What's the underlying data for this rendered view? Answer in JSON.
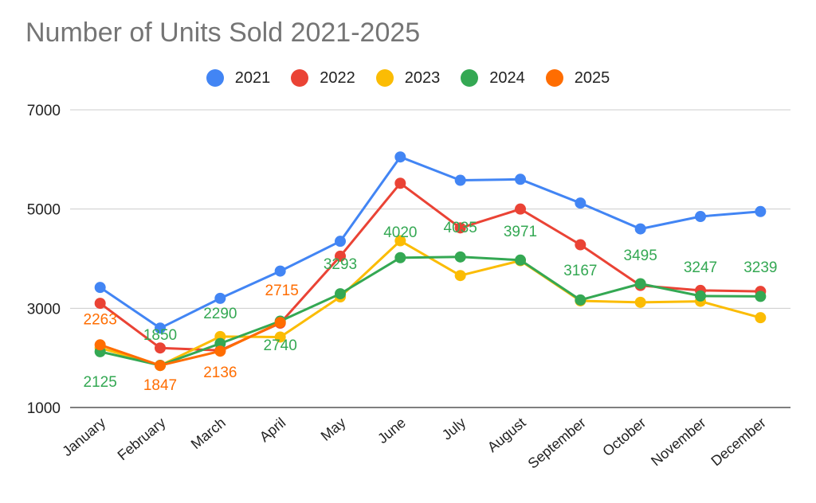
{
  "chart_data": {
    "type": "line",
    "title": "Number of Units Sold 2021-2025",
    "xlabel": "",
    "ylabel": "",
    "categories": [
      "January",
      "February",
      "March",
      "April",
      "May",
      "June",
      "July",
      "August",
      "September",
      "October",
      "November",
      "December"
    ],
    "ylim": [
      1000,
      7000
    ],
    "yticks": [
      1000,
      3000,
      5000,
      7000
    ],
    "grid": true,
    "legend_position": "top",
    "series": [
      {
        "name": "2021",
        "color": "#4285F4",
        "values": [
          3420,
          2600,
          3200,
          3750,
          4350,
          6050,
          5580,
          5600,
          5120,
          4600,
          4850,
          4950
        ],
        "labels": [
          null,
          null,
          null,
          null,
          null,
          null,
          null,
          null,
          null,
          null,
          null,
          null
        ]
      },
      {
        "name": "2022",
        "color": "#EA4335",
        "values": [
          3100,
          2200,
          2150,
          2700,
          4050,
          5520,
          4620,
          5000,
          4280,
          3460,
          3360,
          3340
        ],
        "labels": [
          null,
          null,
          null,
          null,
          null,
          null,
          null,
          null,
          null,
          null,
          null,
          null
        ]
      },
      {
        "name": "2023",
        "color": "#FBBC04",
        "values": [
          2200,
          1847,
          2430,
          2420,
          3230,
          4360,
          3660,
          3960,
          3150,
          3120,
          3140,
          2810
        ],
        "labels": [
          null,
          null,
          null,
          null,
          null,
          null,
          null,
          null,
          null,
          null,
          null,
          null
        ]
      },
      {
        "name": "2024",
        "color": "#34A853",
        "values": [
          2125,
          1850,
          2290,
          2740,
          3293,
          4020,
          4035,
          3971,
          3167,
          3495,
          3247,
          3239
        ],
        "labels": [
          "2125",
          "1850",
          "2290",
          "2740",
          "3293",
          "4020",
          "4035",
          "3971",
          "3167",
          "3495",
          "3247",
          "3239"
        ]
      },
      {
        "name": "2025",
        "color": "#FF6D01",
        "values": [
          2263,
          1847,
          2136,
          2715,
          null,
          null,
          null,
          null,
          null,
          null,
          null,
          null
        ],
        "labels": [
          "2263",
          "1847",
          "2136",
          "2715",
          null,
          null,
          null,
          null,
          null,
          null,
          null,
          null
        ]
      }
    ]
  }
}
